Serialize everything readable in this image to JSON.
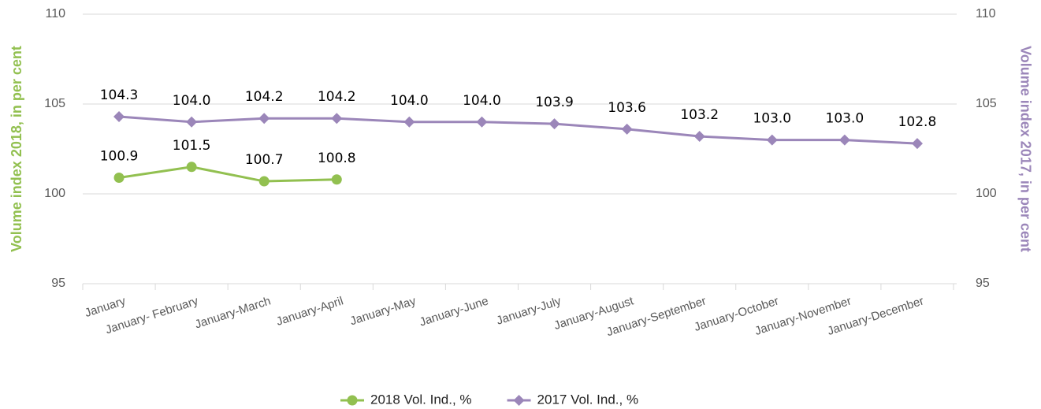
{
  "chart_data": {
    "type": "line",
    "ylabel": "Volume index 2018, in per cent",
    "y2label": "Volume index 2017, in per cent",
    "categories": [
      "January",
      "January- February",
      "January-March",
      "January-April",
      "January-May",
      "January-June",
      "January-July",
      "January-August",
      "January-September",
      "January-October",
      "January-November",
      "January-December"
    ],
    "series": [
      {
        "name": "2018 Vol. Ind., %",
        "color": "#92c050",
        "marker": "circle",
        "axis": "y",
        "values": [
          100.9,
          101.5,
          100.7,
          100.8,
          null,
          null,
          null,
          null,
          null,
          null,
          null,
          null
        ]
      },
      {
        "name": "2017 Vol. Ind., %",
        "color": "#9b86b9",
        "marker": "diamond",
        "axis": "y2",
        "values": [
          104.3,
          104,
          104.2,
          104.2,
          104,
          104,
          103.9,
          103.6,
          103.2,
          103,
          103,
          102.8
        ],
        "value_labels": [
          "104.3",
          "104.0",
          "104.2",
          "104.2",
          "104.0",
          "104.0",
          "103.9",
          "103.6",
          "103.2",
          "103.0",
          "103.0",
          "102.8"
        ]
      }
    ],
    "ylim": [
      95,
      110
    ],
    "yticks": [
      95,
      100,
      105,
      110
    ],
    "y2lim": [
      95,
      110
    ],
    "y2ticks": [
      95,
      100,
      105,
      110
    ],
    "grid": true,
    "legend": "bottom"
  }
}
